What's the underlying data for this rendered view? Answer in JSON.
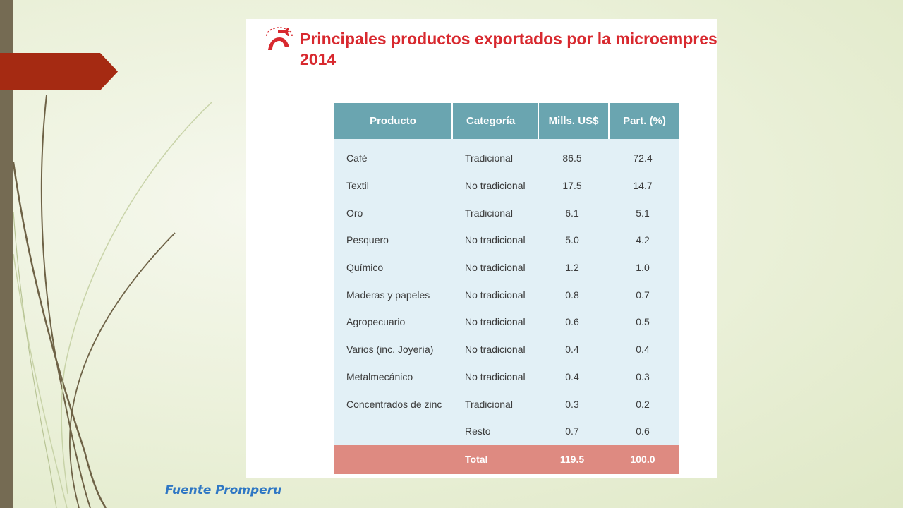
{
  "slide": {
    "title_line1": "Principales productos exportados por la microempres",
    "title_line2": "2014",
    "source": "Fuente Promperu"
  },
  "table": {
    "headers": [
      "Producto",
      "Categoría",
      "Mills. US$",
      "Part. (%)"
    ],
    "rows": [
      [
        "Café",
        "Tradicional",
        "86.5",
        "72.4"
      ],
      [
        "Textil",
        "No tradicional",
        "17.5",
        "14.7"
      ],
      [
        "Oro",
        "Tradicional",
        "6.1",
        "5.1"
      ],
      [
        "Pesquero",
        "No tradicional",
        "5.0",
        "4.2"
      ],
      [
        "Químico",
        "No tradicional",
        "1.2",
        "1.0"
      ],
      [
        "Maderas y papeles",
        "No tradicional",
        "0.8",
        "0.7"
      ],
      [
        "Agropecuario",
        "No tradicional",
        "0.6",
        "0.5"
      ],
      [
        "Varios (inc. Joyería)",
        "No tradicional",
        "0.4",
        "0.4"
      ],
      [
        "Metalmecánico",
        "No tradicional",
        "0.4",
        "0.3"
      ],
      [
        "Concentrados de zinc",
        "Tradicional",
        "0.3",
        "0.2"
      ],
      [
        "",
        "Resto",
        "0.7",
        "0.6"
      ]
    ],
    "total": [
      "",
      "Total",
      "119.5",
      "100.0"
    ]
  },
  "colors": {
    "title": "#d8292f",
    "header_bg": "#6aa5b0",
    "body_bg": "#e2f0f6",
    "total_bg": "#de8a81",
    "accent_tab": "#a52a12",
    "source_text": "#2f77c4"
  },
  "icons": {
    "title_icon": "airplane-export-icon"
  }
}
